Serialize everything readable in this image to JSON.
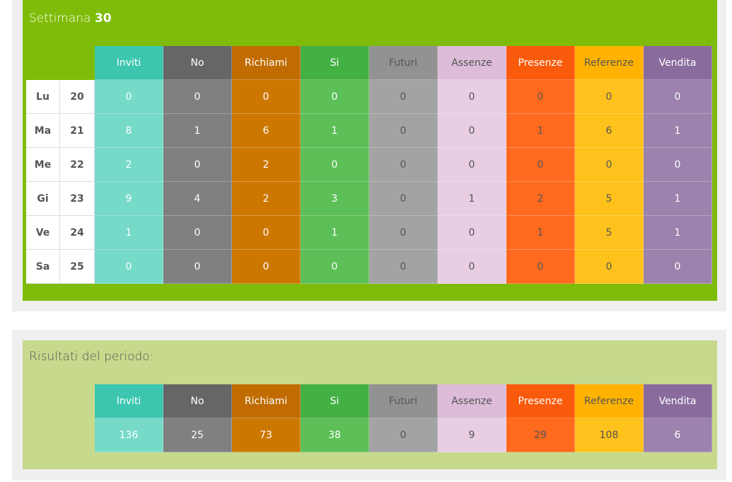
{
  "week": {
    "label": "Settimana",
    "number": "30"
  },
  "columns": [
    {
      "label": "Inviti",
      "head_bg": "#3cc6b0",
      "cell_bg": "#76dac9",
      "head_fg": "#ffffff",
      "cell_fg": "#ffffff"
    },
    {
      "label": "No",
      "head_bg": "#666666",
      "cell_bg": "#808080",
      "head_fg": "#ffffff",
      "cell_fg": "#ffffff"
    },
    {
      "label": "Richiami",
      "head_bg": "#c06c00",
      "cell_bg": "#cc7800",
      "head_fg": "#ffffff",
      "cell_fg": "#ffffff"
    },
    {
      "label": "Si",
      "head_bg": "#42b043",
      "cell_bg": "#5cbf57",
      "head_fg": "#ffffff",
      "cell_fg": "#ffffff"
    },
    {
      "label": "Futuri",
      "head_bg": "#929292",
      "cell_bg": "#a3a3a3",
      "head_fg": "#555555",
      "cell_fg": "#555555"
    },
    {
      "label": "Assenze",
      "head_bg": "#dcbcd9",
      "cell_bg": "#e8cde3",
      "head_fg": "#555555",
      "cell_fg": "#555555"
    },
    {
      "label": "Presenze",
      "head_bg": "#f95a0c",
      "cell_bg": "#ff6a1e",
      "head_fg": "#ffffff",
      "cell_fg": "#555555"
    },
    {
      "label": "Referenze",
      "head_bg": "#ffb300",
      "cell_bg": "#ffc21c",
      "head_fg": "#555555",
      "cell_fg": "#555555"
    },
    {
      "label": "Vendita",
      "head_bg": "#8a6b9e",
      "cell_bg": "#9c82ac",
      "head_fg": "#ffffff",
      "cell_fg": "#ffffff"
    }
  ],
  "days": [
    {
      "day": "Lu",
      "date": "20",
      "values": [
        "0",
        "0",
        "0",
        "0",
        "0",
        "0",
        "0",
        "0",
        "0"
      ]
    },
    {
      "day": "Ma",
      "date": "21",
      "values": [
        "8",
        "1",
        "6",
        "1",
        "0",
        "0",
        "1",
        "6",
        "1"
      ]
    },
    {
      "day": "Me",
      "date": "22",
      "values": [
        "2",
        "0",
        "2",
        "0",
        "0",
        "0",
        "0",
        "0",
        "0"
      ]
    },
    {
      "day": "Gi",
      "date": "23",
      "values": [
        "9",
        "4",
        "2",
        "3",
        "0",
        "1",
        "2",
        "5",
        "1"
      ]
    },
    {
      "day": "Ve",
      "date": "24",
      "values": [
        "1",
        "0",
        "0",
        "1",
        "0",
        "0",
        "1",
        "5",
        "1"
      ]
    },
    {
      "day": "Sa",
      "date": "25",
      "values": [
        "0",
        "0",
        "0",
        "0",
        "0",
        "0",
        "0",
        "0",
        "0"
      ]
    }
  ],
  "results": {
    "title": "Risultati del periodo:",
    "values": [
      "136",
      "25",
      "73",
      "38",
      "0",
      "9",
      "29",
      "108",
      "6"
    ]
  }
}
